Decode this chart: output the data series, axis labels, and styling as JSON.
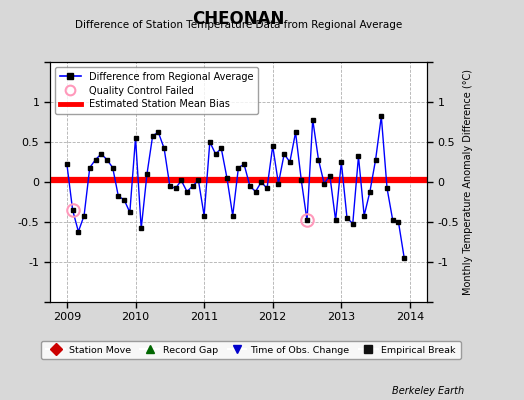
{
  "title": "CHEONAN",
  "subtitle": "Difference of Station Temperature Data from Regional Average",
  "ylabel_right": "Monthly Temperature Anomaly Difference (°C)",
  "ylim": [
    -1.5,
    1.5
  ],
  "xlim": [
    2008.75,
    2014.25
  ],
  "bias_value": 0.02,
  "background_color": "#d8d8d8",
  "plot_bg_color": "#ffffff",
  "grid_color": "#b0b0b0",
  "xticks": [
    2009,
    2010,
    2011,
    2012,
    2013,
    2014
  ],
  "yticks": [
    -1.5,
    -1.0,
    -0.5,
    0.0,
    0.5,
    1.0,
    1.5
  ],
  "time_series": [
    2009.0,
    2009.083,
    2009.167,
    2009.25,
    2009.333,
    2009.417,
    2009.5,
    2009.583,
    2009.667,
    2009.75,
    2009.833,
    2009.917,
    2010.0,
    2010.083,
    2010.167,
    2010.25,
    2010.333,
    2010.417,
    2010.5,
    2010.583,
    2010.667,
    2010.75,
    2010.833,
    2010.917,
    2011.0,
    2011.083,
    2011.167,
    2011.25,
    2011.333,
    2011.417,
    2011.5,
    2011.583,
    2011.667,
    2011.75,
    2011.833,
    2011.917,
    2012.0,
    2012.083,
    2012.167,
    2012.25,
    2012.333,
    2012.417,
    2012.5,
    2012.583,
    2012.667,
    2012.75,
    2012.833,
    2012.917,
    2013.0,
    2013.083,
    2013.167,
    2013.25,
    2013.333,
    2013.417,
    2013.5,
    2013.583,
    2013.667,
    2013.75,
    2013.833,
    2013.917
  ],
  "values": [
    0.22,
    -0.35,
    -0.62,
    -0.42,
    0.18,
    0.28,
    0.35,
    0.28,
    0.18,
    -0.18,
    -0.22,
    -0.38,
    0.55,
    -0.58,
    0.1,
    0.58,
    0.62,
    0.42,
    -0.05,
    -0.08,
    0.02,
    -0.12,
    -0.05,
    0.02,
    -0.42,
    0.5,
    0.35,
    0.42,
    0.05,
    -0.42,
    0.18,
    0.22,
    -0.05,
    -0.12,
    0.0,
    -0.08,
    0.45,
    -0.02,
    0.35,
    0.25,
    0.62,
    0.02,
    -0.48,
    0.78,
    0.28,
    -0.02,
    0.08,
    -0.48,
    0.25,
    -0.45,
    -0.52,
    0.32,
    -0.42,
    -0.12,
    0.28,
    0.82,
    -0.08,
    -0.48,
    -0.5,
    -0.95
  ],
  "qc_failed_times": [
    2009.083,
    2012.5
  ],
  "qc_failed_values": [
    -0.35,
    -0.48
  ],
  "legend_bottom": [
    {
      "label": "Station Move",
      "color": "#cc0000",
      "marker": "D"
    },
    {
      "label": "Record Gap",
      "color": "#006600",
      "marker": "^"
    },
    {
      "label": "Time of Obs. Change",
      "color": "#0000cc",
      "marker": "v"
    },
    {
      "label": "Empirical Break",
      "color": "#111111",
      "marker": "s"
    }
  ]
}
